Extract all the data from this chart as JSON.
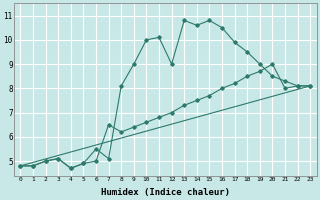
{
  "xlabel": "Humidex (Indice chaleur)",
  "bg_color": "#c8e8e8",
  "line_color": "#2d7a6a",
  "grid_color": "#ffffff",
  "xlim": [
    -0.5,
    23.5
  ],
  "ylim": [
    4.4,
    11.5
  ],
  "xticks": [
    0,
    1,
    2,
    3,
    4,
    5,
    6,
    7,
    8,
    9,
    10,
    11,
    12,
    13,
    14,
    15,
    16,
    17,
    18,
    19,
    20,
    21,
    22,
    23
  ],
  "yticks": [
    5,
    6,
    7,
    8,
    9,
    10,
    11
  ],
  "line1_x": [
    0,
    1,
    2,
    3,
    4,
    5,
    6,
    7,
    8,
    9,
    10,
    11,
    12,
    13,
    14,
    15,
    16,
    17,
    18,
    19,
    20,
    21,
    22,
    23
  ],
  "line1_y": [
    4.8,
    4.8,
    5.0,
    5.1,
    4.7,
    4.9,
    5.5,
    5.1,
    8.1,
    9.0,
    10.0,
    10.1,
    9.0,
    10.8,
    10.6,
    10.8,
    10.5,
    9.9,
    9.5,
    9.0,
    8.5,
    8.3,
    8.1,
    8.1
  ],
  "line2_x": [
    0,
    1,
    2,
    3,
    4,
    5,
    6,
    7,
    8,
    9,
    10,
    11,
    12,
    13,
    14,
    15,
    16,
    17,
    18,
    19,
    20,
    21,
    22,
    23
  ],
  "line2_y": [
    4.8,
    4.8,
    5.0,
    5.1,
    4.7,
    4.9,
    5.0,
    6.5,
    6.2,
    6.4,
    6.6,
    6.8,
    7.0,
    7.3,
    7.5,
    7.7,
    8.0,
    8.2,
    8.5,
    8.7,
    9.0,
    8.0,
    8.1,
    8.1
  ],
  "line3_x": [
    0,
    23
  ],
  "line3_y": [
    4.8,
    8.1
  ]
}
